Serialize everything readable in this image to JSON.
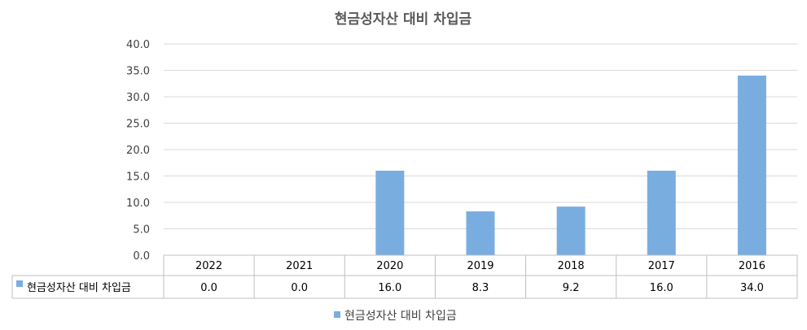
{
  "chart_data": {
    "type": "bar",
    "title": "현금성자산 대비 차입금",
    "categories": [
      "2022",
      "2021",
      "2020",
      "2019",
      "2018",
      "2017",
      "2016"
    ],
    "series": [
      {
        "name": "현금성자산 대비 차입금",
        "values": [
          0.0,
          0.0,
          16.0,
          8.3,
          9.2,
          16.0,
          34.0
        ],
        "labels": [
          "0.0",
          "0.0",
          "16.0",
          "8.3",
          "9.2",
          "16.0",
          "34.0"
        ]
      }
    ],
    "yticks": [
      "0.0",
      "5.0",
      "10.0",
      "15.0",
      "20.0",
      "25.0",
      "30.0",
      "35.0",
      "40.0"
    ],
    "ylim": [
      0,
      40
    ],
    "grid": true,
    "data_table": true,
    "legend_position": "bottom",
    "colors": {
      "bar": "#7aaddf",
      "grid": "#d9d9d9",
      "table_border": "#bfbfbf"
    }
  }
}
